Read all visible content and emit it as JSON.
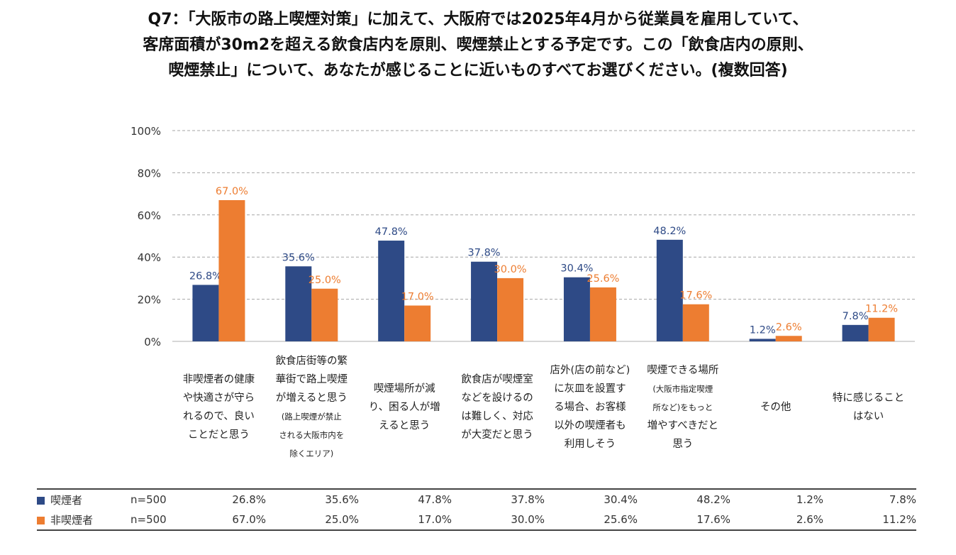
{
  "title_lines": [
    "Q7：「大阪市の路上喫煙対策」に加えて、大阪府では2025年4月から従業員を雇用していて、",
    "客席面積が30m2を超える飲食店内を原則、喫煙禁止とする予定です。この「飲食店内の原則、",
    "喫煙禁止」について、あなたが感じることに近いものすべてお選びください。(複数回答)"
  ],
  "colors": {
    "smoker": "#2e4a86",
    "nonsmoker": "#ed7d31",
    "grid": "#a6a6a6",
    "axis": "#bfbfbf"
  },
  "category_labels": [
    {
      "lines": [
        "非喫煙者の健康",
        "や快適さが守ら",
        "れるので、良い",
        "ことだと思う"
      ],
      "small": []
    },
    {
      "lines": [
        "飲食店街等の繁",
        "華街で路上喫煙",
        "が増えると思う",
        "(路上喫煙が禁止",
        "される大阪市内を",
        "除くエリア)"
      ],
      "small": [
        3,
        4,
        5
      ]
    },
    {
      "lines": [
        "喫煙場所が減",
        "り、困る人が増",
        "えると思う"
      ],
      "small": []
    },
    {
      "lines": [
        "飲食店が喫煙室",
        "などを設けるの",
        "は難しく、対応",
        "が大変だと思う"
      ],
      "small": []
    },
    {
      "lines": [
        "店外(店の前など)",
        "に灰皿を設置す",
        "る場合、お客様",
        "以外の喫煙者も",
        "利用しそう"
      ],
      "small": []
    },
    {
      "lines": [
        "喫煙できる場所",
        "(大阪市指定喫煙",
        "所など)をもっと",
        "増やすべきだと",
        "思う"
      ],
      "small": [
        1,
        2
      ]
    },
    {
      "lines": [
        "その他"
      ],
      "small": []
    },
    {
      "lines": [
        "特に感じること",
        "はない"
      ],
      "small": []
    }
  ],
  "chart_data": {
    "type": "bar",
    "title": "Q7：「大阪市の路上喫煙対策」に加えて、大阪府では2025年4月から従業員を雇用していて、客席面積が30m2を超える飲食店内を原則、喫煙禁止とする予定です。この「飲食店内の原則、喫煙禁止」について、あなたが感じることに近いものすべてお選びください。(複数回答)",
    "categories": [
      "非喫煙者の健康や快適さが守られるので、良いことだと思う",
      "飲食店街等の繁華街で路上喫煙が増えると思う(路上喫煙が禁止される大阪市内を除くエリア)",
      "喫煙場所が減り、困る人が増えると思う",
      "飲食店が喫煙室などを設けるのは難しく、対応が大変だと思う",
      "店外(店の前など)に灰皿を設置する場合、お客様以外の喫煙者も利用しそう",
      "喫煙できる場所(大阪市指定喫煙所など)をもっと増やすべきだと思う",
      "その他",
      "特に感じることはない"
    ],
    "series": [
      {
        "name": "喫煙者",
        "n": "n=500",
        "values": [
          26.8,
          35.6,
          47.8,
          37.8,
          30.4,
          48.2,
          1.2,
          7.8
        ],
        "labels": [
          "26.8%",
          "35.6%",
          "47.8%",
          "37.8%",
          "30.4%",
          "48.2%",
          "1.2%",
          "7.8%"
        ]
      },
      {
        "name": "非喫煙者",
        "n": "n=500",
        "values": [
          67.0,
          25.0,
          17.0,
          30.0,
          25.6,
          17.6,
          2.6,
          11.2
        ],
        "labels": [
          "67.0%",
          "25.0%",
          "17.0%",
          "30.0%",
          "25.6%",
          "17.6%",
          "2.6%",
          "11.2%"
        ]
      }
    ],
    "ylim": [
      0,
      100
    ],
    "yticks": [
      0,
      20,
      40,
      60,
      80,
      100
    ],
    "ytick_labels": [
      "0%",
      "20%",
      "40%",
      "60%",
      "80%",
      "100%"
    ],
    "xlabel": "",
    "ylabel": "",
    "grid": true,
    "legend": "table-below"
  }
}
